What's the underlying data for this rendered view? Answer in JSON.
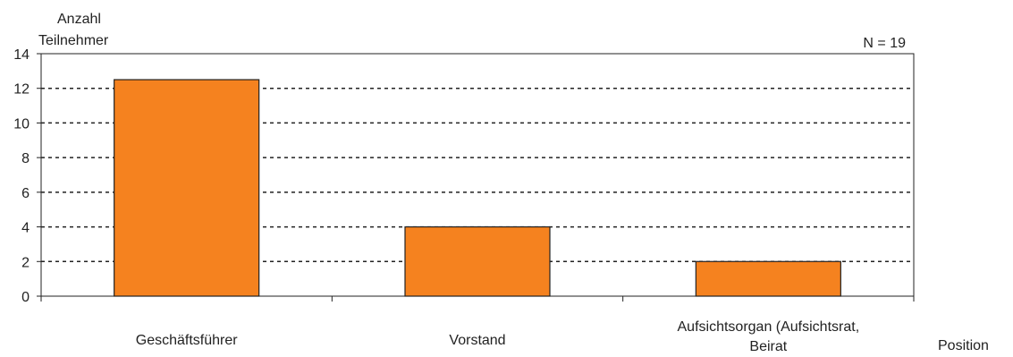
{
  "chart_data": {
    "type": "bar",
    "title": "",
    "ylabel": [
      "Anzahl",
      "Teilnehmer"
    ],
    "xlabel": "Position",
    "annotation": "N = 19",
    "categories": [
      [
        "Geschäftsführer"
      ],
      [
        "Vorstand"
      ],
      [
        "Aufsichtsorgan (Aufsichtsrat,",
        "Beirat"
      ]
    ],
    "values": [
      12.5,
      4,
      2
    ],
    "ylim": [
      0,
      14
    ],
    "yticks": [
      0,
      2,
      4,
      6,
      8,
      10,
      12,
      14
    ],
    "grid": true,
    "bar_color": "#F5821F",
    "bar_edge_color": "#222222"
  }
}
